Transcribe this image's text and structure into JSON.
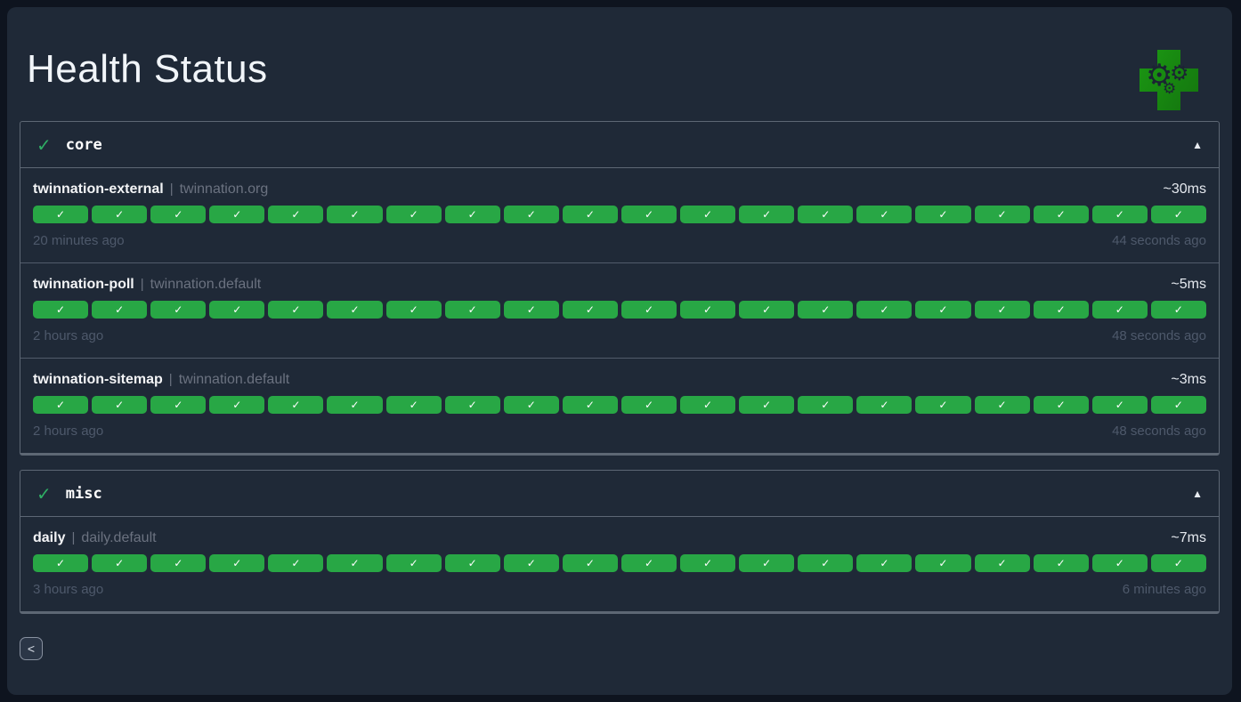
{
  "page": {
    "title": "Health Status",
    "back_button_label": "<"
  },
  "icons": {
    "ok_glyph": "✓",
    "group_ok_glyph": "✓",
    "collapse_glyph": "▲",
    "gear_glyph": "⚙"
  },
  "colors": {
    "badge_ok": "#28a745",
    "group_ok": "#2fae64",
    "logo_cross": "#1a9312",
    "page_background": "#1f2937",
    "outer_background": "#0e141f"
  },
  "groups": [
    {
      "name": "core",
      "status": "ok",
      "endpoints": [
        {
          "name": "twinnation-external",
          "separator": "|",
          "description": "twinnation.org",
          "response_time": "~30ms",
          "oldest_result": "20 minutes ago",
          "newest_result": "44 seconds ago",
          "history": [
            "ok",
            "ok",
            "ok",
            "ok",
            "ok",
            "ok",
            "ok",
            "ok",
            "ok",
            "ok",
            "ok",
            "ok",
            "ok",
            "ok",
            "ok",
            "ok",
            "ok",
            "ok",
            "ok",
            "ok"
          ]
        },
        {
          "name": "twinnation-poll",
          "separator": "|",
          "description": "twinnation.default",
          "response_time": "~5ms",
          "oldest_result": "2 hours ago",
          "newest_result": "48 seconds ago",
          "history": [
            "ok",
            "ok",
            "ok",
            "ok",
            "ok",
            "ok",
            "ok",
            "ok",
            "ok",
            "ok",
            "ok",
            "ok",
            "ok",
            "ok",
            "ok",
            "ok",
            "ok",
            "ok",
            "ok",
            "ok"
          ]
        },
        {
          "name": "twinnation-sitemap",
          "separator": "|",
          "description": "twinnation.default",
          "response_time": "~3ms",
          "oldest_result": "2 hours ago",
          "newest_result": "48 seconds ago",
          "history": [
            "ok",
            "ok",
            "ok",
            "ok",
            "ok",
            "ok",
            "ok",
            "ok",
            "ok",
            "ok",
            "ok",
            "ok",
            "ok",
            "ok",
            "ok",
            "ok",
            "ok",
            "ok",
            "ok",
            "ok"
          ]
        }
      ]
    },
    {
      "name": "misc",
      "status": "ok",
      "endpoints": [
        {
          "name": "daily",
          "separator": "|",
          "description": "daily.default",
          "response_time": "~7ms",
          "oldest_result": "3 hours ago",
          "newest_result": "6 minutes ago",
          "history": [
            "ok",
            "ok",
            "ok",
            "ok",
            "ok",
            "ok",
            "ok",
            "ok",
            "ok",
            "ok",
            "ok",
            "ok",
            "ok",
            "ok",
            "ok",
            "ok",
            "ok",
            "ok",
            "ok",
            "ok"
          ]
        }
      ]
    }
  ]
}
